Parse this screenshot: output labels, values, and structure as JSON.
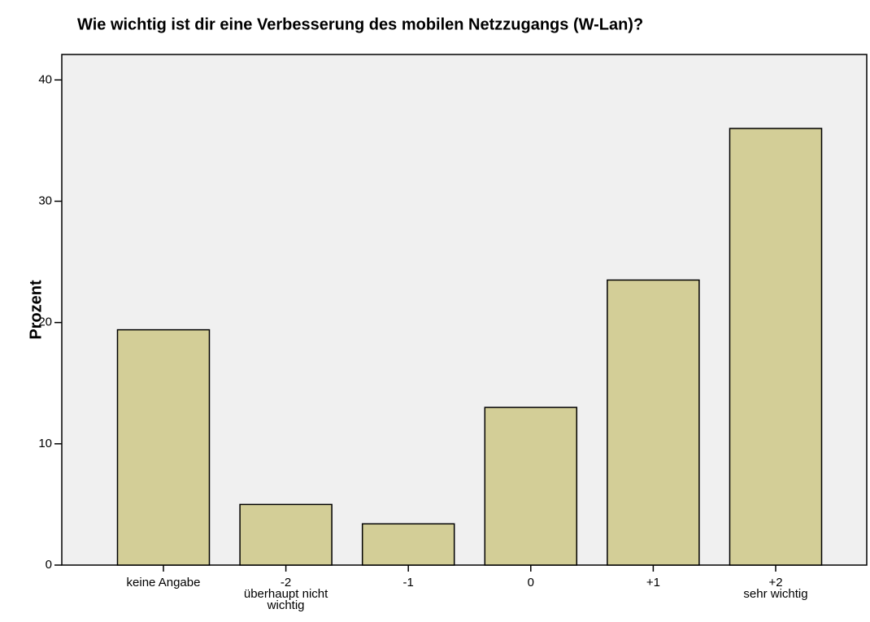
{
  "chart_data": {
    "type": "bar",
    "title": "Wie wichtig ist dir eine Verbesserung des mobilen Netzzugangs (W-Lan)?",
    "y_label": "Prozent",
    "categories": [
      [
        "keine Angabe"
      ],
      [
        "-2",
        "überhaupt nicht",
        "wichtig"
      ],
      [
        "-1"
      ],
      [
        "0"
      ],
      [
        "+1"
      ],
      [
        "+2",
        "sehr wichtig"
      ]
    ],
    "values": [
      19.4,
      5.0,
      3.4,
      13.0,
      23.5,
      36.0
    ],
    "color": "#d3ce97",
    "ylim": [
      0,
      42.1
    ],
    "yticks": [
      0,
      10,
      20,
      30,
      40
    ],
    "grid": false
  }
}
